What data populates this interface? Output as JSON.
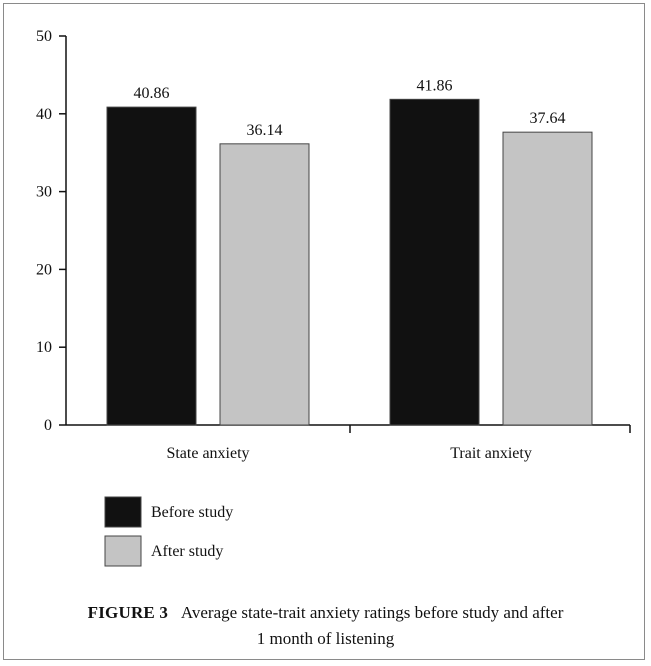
{
  "chart_data": {
    "type": "bar",
    "categories": [
      "State anxiety",
      "Trait anxiety"
    ],
    "series": [
      {
        "name": "Before study",
        "values": [
          40.86,
          41.86
        ],
        "color": "#111111"
      },
      {
        "name": "After study",
        "values": [
          36.14,
          37.64
        ],
        "color": "#c4c4c4"
      }
    ],
    "value_labels": [
      [
        "40.86",
        "41.86"
      ],
      [
        "36.14",
        "37.64"
      ]
    ],
    "ylim": [
      0,
      50
    ],
    "yticks": [
      0,
      10,
      20,
      30,
      40,
      50
    ],
    "grid": false,
    "legend_position": "bottom-left"
  },
  "caption": {
    "label": "FIGURE 3",
    "text_line1": "Average state-trait anxiety ratings before study and after",
    "text_line2": "1 month of listening"
  }
}
